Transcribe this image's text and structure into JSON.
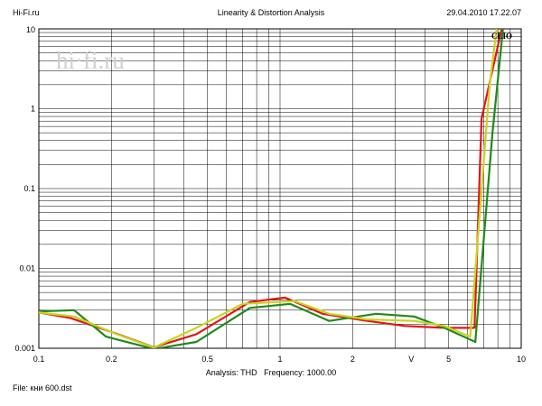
{
  "header": {
    "left": "Hi-Fi.ru",
    "center": "Linearity & Distortion Analysis",
    "right": "29.04.2010 17.22.07"
  },
  "watermark": "hi·fi.ru",
  "clio_badge": "CLIO",
  "footer": {
    "analysis_label": "Analysis: THD",
    "frequency_label": "Frequency: 1000.00",
    "file_label": "File: кни 600.dst"
  },
  "colors": {
    "grid": "#000000",
    "series_red": "#e3141a",
    "series_green": "#1f8a1c",
    "series_yellow": "#c9d41e",
    "watermark": "#d0d0d0"
  },
  "chart_data": {
    "type": "line",
    "xscale": "log",
    "yscale": "log",
    "xlim": [
      0.1,
      10
    ],
    "ylim": [
      0.001,
      10
    ],
    "grid": true,
    "x_tick_labels": [
      {
        "value": 0.1,
        "label": "0.1"
      },
      {
        "value": 0.2,
        "label": "0.2"
      },
      {
        "value": 0.5,
        "label": "0.5"
      },
      {
        "value": 1,
        "label": "1"
      },
      {
        "value": 2,
        "label": "2"
      },
      {
        "value": 3.5,
        "label": "V"
      },
      {
        "value": 5,
        "label": "5"
      },
      {
        "value": 10,
        "label": "10"
      }
    ],
    "y_tick_labels": [
      {
        "value": 10,
        "label": "10"
      },
      {
        "value": 1,
        "label": "1"
      },
      {
        "value": 0.1,
        "label": "0.1"
      },
      {
        "value": 0.01,
        "label": "0.01"
      },
      {
        "value": 0.001,
        "label": "0.001"
      }
    ],
    "series": [
      {
        "color_key": "series_red",
        "points": [
          [
            0.1,
            0.0028
          ],
          [
            0.135,
            0.0024
          ],
          [
            0.2,
            0.0016
          ],
          [
            0.3,
            0.00103
          ],
          [
            0.45,
            0.0015
          ],
          [
            0.75,
            0.0038
          ],
          [
            1.05,
            0.0043
          ],
          [
            1.5,
            0.0027
          ],
          [
            2.3,
            0.0022
          ],
          [
            3.3,
            0.0019
          ],
          [
            4.8,
            0.0018
          ],
          [
            6.4,
            0.0018
          ],
          [
            6.85,
            0.75
          ],
          [
            8.3,
            10
          ]
        ]
      },
      {
        "color_key": "series_green",
        "points": [
          [
            0.1,
            0.0029
          ],
          [
            0.14,
            0.003
          ],
          [
            0.19,
            0.0014
          ],
          [
            0.3,
            0.00098
          ],
          [
            0.45,
            0.0012
          ],
          [
            0.75,
            0.0032
          ],
          [
            1.1,
            0.0036
          ],
          [
            1.6,
            0.0022
          ],
          [
            2.5,
            0.0027
          ],
          [
            3.6,
            0.0025
          ],
          [
            4.8,
            0.0018
          ],
          [
            6.45,
            0.0012
          ],
          [
            7.6,
            0.5
          ],
          [
            8.4,
            10
          ]
        ]
      },
      {
        "color_key": "series_yellow",
        "points": [
          [
            0.1,
            0.0028
          ],
          [
            0.14,
            0.0025
          ],
          [
            0.21,
            0.0015
          ],
          [
            0.3,
            0.00102
          ],
          [
            0.45,
            0.0018
          ],
          [
            0.7,
            0.0036
          ],
          [
            1.15,
            0.0039
          ],
          [
            1.6,
            0.0027
          ],
          [
            2.3,
            0.0023
          ],
          [
            3.6,
            0.0022
          ],
          [
            4.8,
            0.0019
          ],
          [
            6.15,
            0.0014
          ],
          [
            7.4,
            2.0
          ],
          [
            7.9,
            10
          ]
        ]
      }
    ]
  }
}
